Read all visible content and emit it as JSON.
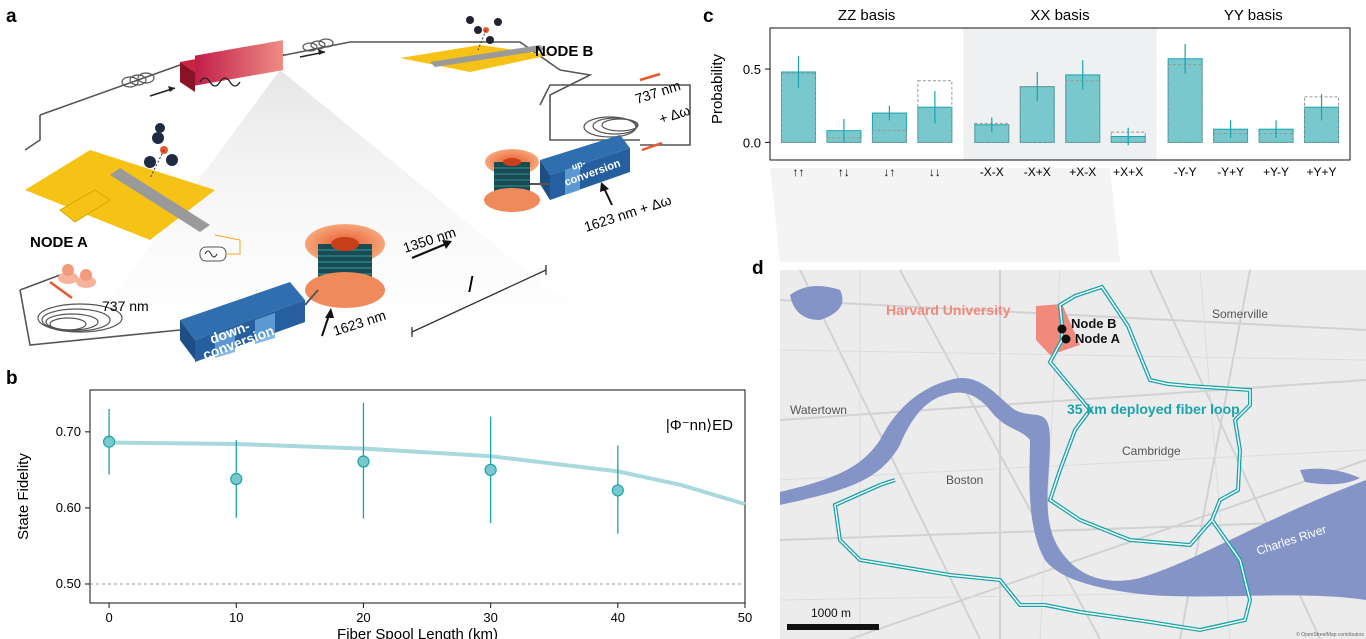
{
  "panels": {
    "a": "a",
    "b": "b",
    "c": "c",
    "d": "d"
  },
  "schematic": {
    "node_a": "NODE A",
    "node_b": "NODE B",
    "downconversion_line1": "down-",
    "downconversion_line2": "conversion",
    "upconversion_line1": "up-",
    "upconversion_line2": "conversion",
    "wl_737": "737 nm",
    "wl_1623": "1623 nm",
    "wl_1350": "1350 nm",
    "wl_1623_shift": "1623 nm + Δω",
    "wl_737_shift_line1": "737 nm",
    "wl_737_shift_line2": "+ Δω",
    "length_symbol": "l"
  },
  "colors": {
    "teal": "#1aa3ad",
    "teal_fill": "#79c8cd",
    "fit": "#a9d9dd",
    "river": "#8494c6",
    "harvard": "#f08a7c",
    "gold": "#f5c215",
    "orange": "#f47c4c",
    "blue_box": "#2f6fb0"
  },
  "chart_data": [
    {
      "type": "scatter",
      "panel": "b",
      "x": [
        0,
        10,
        20,
        30,
        40
      ],
      "y": [
        0.687,
        0.638,
        0.661,
        0.65,
        0.623
      ],
      "yerr_low": [
        0.043,
        0.051,
        0.075,
        0.07,
        0.057
      ],
      "yerr_high": [
        0.043,
        0.051,
        0.077,
        0.07,
        0.059
      ],
      "fit": {
        "x": [
          0,
          10,
          20,
          30,
          40,
          45,
          50
        ],
        "y": [
          0.686,
          0.684,
          0.678,
          0.668,
          0.648,
          0.63,
          0.605
        ]
      },
      "reference_line": 0.5,
      "xlabel": "Fiber Spool Length (km)",
      "ylabel": "State Fidelity",
      "xticks": [
        "0",
        "10",
        "20",
        "30",
        "40",
        "50"
      ],
      "yticks": [
        "0.50",
        "0.60",
        "0.70"
      ],
      "xlim": [
        -1.5,
        50
      ],
      "ylim": [
        0.475,
        0.755
      ],
      "annotation": "|Φ⁻nn⟩ED",
      "grid": false
    },
    {
      "type": "bar",
      "panel": "c",
      "ylabel": "Probability",
      "yticks": [
        "0.0",
        "0.5"
      ],
      "ylim": [
        -0.12,
        0.78
      ],
      "groups": [
        {
          "title": "ZZ basis",
          "categories": [
            "↑↑",
            "↑↓",
            "↓↑",
            "↓↓"
          ],
          "values": [
            0.48,
            0.08,
            0.2,
            0.24
          ],
          "expected": [
            0.47,
            0.03,
            0.08,
            0.42
          ],
          "err": [
            0.11,
            0.08,
            0.05,
            0.11
          ]
        },
        {
          "title": "XX basis",
          "categories": [
            "-X-X",
            "-X+X",
            "+X-X",
            "+X+X"
          ],
          "values": [
            0.12,
            0.38,
            0.46,
            0.04
          ],
          "expected": [
            0.13,
            0.38,
            0.42,
            0.07
          ],
          "err": [
            0.05,
            0.1,
            0.1,
            0.06
          ]
        },
        {
          "title": "YY basis",
          "categories": [
            "-Y-Y",
            "-Y+Y",
            "+Y-Y",
            "+Y+Y"
          ],
          "values": [
            0.57,
            0.09,
            0.09,
            0.24
          ],
          "expected": [
            0.53,
            0.06,
            0.06,
            0.31
          ],
          "err": [
            0.1,
            0.06,
            0.06,
            0.09
          ]
        }
      ]
    }
  ],
  "map": {
    "harvard": "Harvard University",
    "node_b": "Node B",
    "node_a": "Node A",
    "somerville": "Somerville",
    "watertown": "Watertown",
    "fiber_loop": "35 km deployed fiber loop",
    "cambridge": "Cambridge",
    "boston": "Boston",
    "charles": "Charles River",
    "scale": "1000 m",
    "attribution": "© OpenStreetMap contributors"
  }
}
